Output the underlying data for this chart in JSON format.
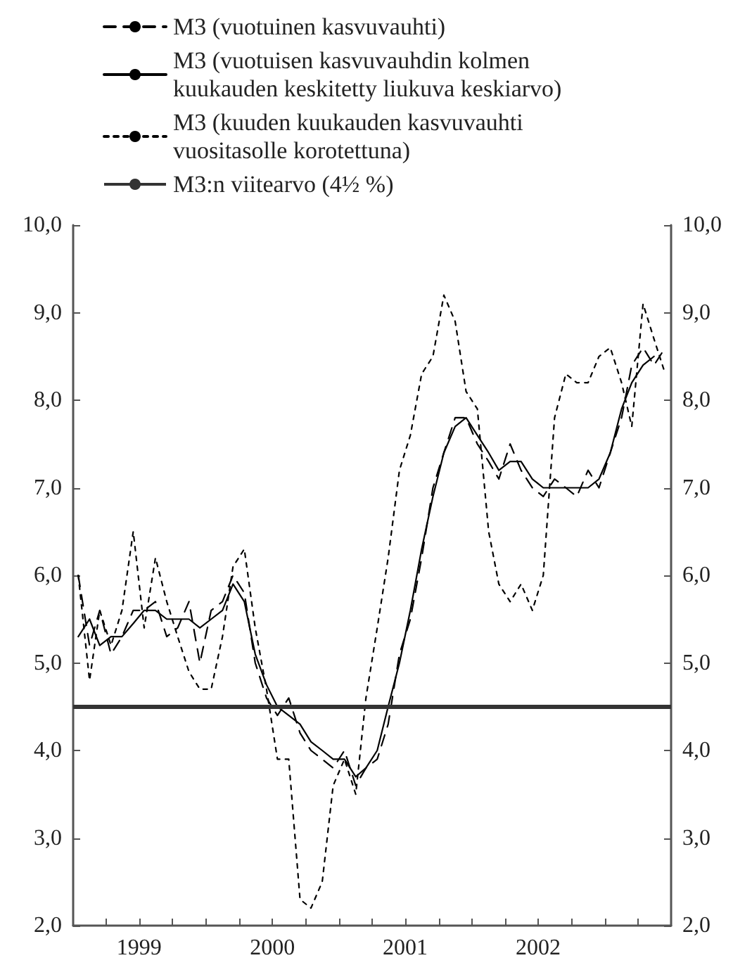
{
  "chart_data": {
    "type": "line",
    "x": [
      "1999-01-15",
      "1999-02-15",
      "1999-03-15",
      "1999-04-15",
      "1999-05-15",
      "1999-06-15",
      "1999-07-15",
      "1999-08-15",
      "1999-09-15",
      "1999-10-15",
      "1999-11-15",
      "1999-12-15",
      "2000-01-15",
      "2000-02-15",
      "2000-03-15",
      "2000-04-15",
      "2000-05-15",
      "2000-06-15",
      "2000-07-15",
      "2000-08-15",
      "2000-09-15",
      "2000-10-15",
      "2000-11-15",
      "2000-12-15",
      "2001-01-15",
      "2001-02-15",
      "2001-03-15",
      "2001-04-15",
      "2001-05-15",
      "2001-06-15",
      "2001-07-15",
      "2001-08-15",
      "2001-09-15",
      "2001-10-15",
      "2001-11-15",
      "2001-12-15",
      "2002-01-15",
      "2002-02-15",
      "2002-03-15",
      "2002-04-15",
      "2002-05-15",
      "2002-06-15",
      "2002-07-15",
      "2002-08-15",
      "2002-09-15",
      "2002-10-15",
      "2002-11-15",
      "2002-12-15",
      "2003-01-15",
      "2003-02-15",
      "2003-03-15",
      "2003-04-15",
      "2003-05-15",
      "2003-06-15"
    ],
    "series": [
      {
        "name": "M3 (vuotuinen kasvuvauhti)",
        "color": "#000000",
        "line_style": "dashed",
        "values": [
          6.0,
          5.2,
          5.6,
          5.1,
          5.3,
          5.6,
          5.6,
          5.7,
          5.3,
          5.4,
          5.7,
          5.0,
          5.6,
          5.7,
          6.0,
          5.8,
          5.0,
          4.6,
          4.4,
          4.6,
          4.2,
          4.0,
          3.9,
          3.8,
          4.0,
          3.6,
          3.8,
          3.9,
          4.3,
          5.1,
          5.5,
          6.2,
          7.0,
          7.4,
          7.8,
          7.8,
          7.5,
          7.3,
          7.1,
          7.5,
          7.2,
          7.0,
          6.9,
          7.1,
          7.0,
          6.9,
          7.2,
          7.0,
          7.4,
          7.8,
          8.4,
          8.6,
          8.4,
          8.6
        ]
      },
      {
        "name": "M3 (vuotuisen kasvuvauhdin kolmen kuukauden keskitetty liukuva keskiarvo)",
        "color": "#000000",
        "line_style": "solid",
        "values": [
          5.3,
          5.5,
          5.2,
          5.3,
          5.3,
          5.45,
          5.6,
          5.6,
          5.5,
          5.5,
          5.5,
          5.4,
          5.5,
          5.6,
          5.9,
          5.7,
          5.1,
          4.75,
          4.5,
          4.4,
          4.3,
          4.1,
          4.0,
          3.9,
          3.9,
          3.7,
          3.8,
          4.0,
          4.5,
          5.0,
          5.6,
          6.3,
          6.9,
          7.4,
          7.7,
          7.8,
          7.6,
          7.4,
          7.2,
          7.3,
          7.3,
          7.1,
          7.0,
          7.0,
          7.0,
          7.0,
          7.0,
          7.1,
          7.4,
          7.9,
          8.2,
          8.4,
          8.5,
          null
        ]
      },
      {
        "name": "M3 (kuuden kuukauden kasvuvauhti vuositasolle korotettuna)",
        "color": "#000000",
        "line_style": "dotted",
        "values": [
          6.0,
          4.8,
          5.6,
          5.2,
          5.6,
          6.5,
          5.4,
          6.2,
          5.7,
          5.3,
          4.9,
          4.7,
          4.7,
          5.3,
          6.1,
          6.3,
          5.4,
          4.7,
          3.9,
          3.9,
          2.3,
          2.2,
          2.5,
          3.6,
          3.9,
          3.5,
          4.6,
          5.4,
          6.2,
          7.2,
          7.6,
          8.3,
          8.5,
          9.2,
          8.9,
          8.1,
          7.9,
          6.5,
          5.9,
          5.7,
          5.9,
          5.6,
          6.0,
          7.8,
          8.3,
          8.2,
          8.2,
          8.5,
          8.6,
          8.2,
          7.7,
          9.1,
          8.7,
          8.3
        ]
      }
    ],
    "ref_lines": [
      {
        "axis": "y",
        "value": 4.5,
        "label": "M3:n viitearvo (4½ %)",
        "color": "#333333"
      }
    ],
    "xlim": [
      "1999-01-01",
      "2003-07-01"
    ],
    "xticks": [
      {
        "value": "1999-04-01",
        "label": null
      },
      {
        "value": "1999-07-01",
        "label": "1999"
      },
      {
        "value": "1999-10-01",
        "label": null
      },
      {
        "value": "2000-01-01",
        "label": null
      },
      {
        "value": "2000-04-01",
        "label": null
      },
      {
        "value": "2000-07-01",
        "label": "2000"
      },
      {
        "value": "2000-10-01",
        "label": null
      },
      {
        "value": "2001-01-01",
        "label": null
      },
      {
        "value": "2001-04-01",
        "label": null
      },
      {
        "value": "2001-07-01",
        "label": "2001"
      },
      {
        "value": "2001-10-01",
        "label": null
      },
      {
        "value": "2002-01-01",
        "label": null
      },
      {
        "value": "2002-04-01",
        "label": null
      },
      {
        "value": "2002-07-01",
        "label": "2002"
      },
      {
        "value": "2002-10-01",
        "label": null
      },
      {
        "value": "2003-01-01",
        "label": null
      },
      {
        "value": "2003-04-01",
        "label": null
      }
    ],
    "ylim": [
      2,
      10
    ],
    "yticks": [
      {
        "value": 2,
        "label": "2,0"
      },
      {
        "value": 3,
        "label": "3,0"
      },
      {
        "value": 4,
        "label": "4,0"
      },
      {
        "value": 5,
        "label": "5,0"
      },
      {
        "value": 6,
        "label": "6,0"
      },
      {
        "value": 7,
        "label": "7,0"
      },
      {
        "value": 8,
        "label": "8,0"
      },
      {
        "value": 9,
        "label": "9,0"
      },
      {
        "value": 10,
        "label": "10,0"
      }
    ],
    "y2lim": [
      2,
      10
    ],
    "y2ticks": [
      {
        "value": 2,
        "label": "2,0"
      },
      {
        "value": 3,
        "label": "3,0"
      },
      {
        "value": 4,
        "label": "4,0"
      },
      {
        "value": 5,
        "label": "5,0"
      },
      {
        "value": 6,
        "label": "6,0"
      },
      {
        "value": 7,
        "label": "7,0"
      },
      {
        "value": 8,
        "label": "8,0"
      },
      {
        "value": 9,
        "label": "9,0"
      },
      {
        "value": 10,
        "label": "10,0"
      }
    ],
    "grid": false,
    "legend": "top",
    "marker": "none"
  }
}
